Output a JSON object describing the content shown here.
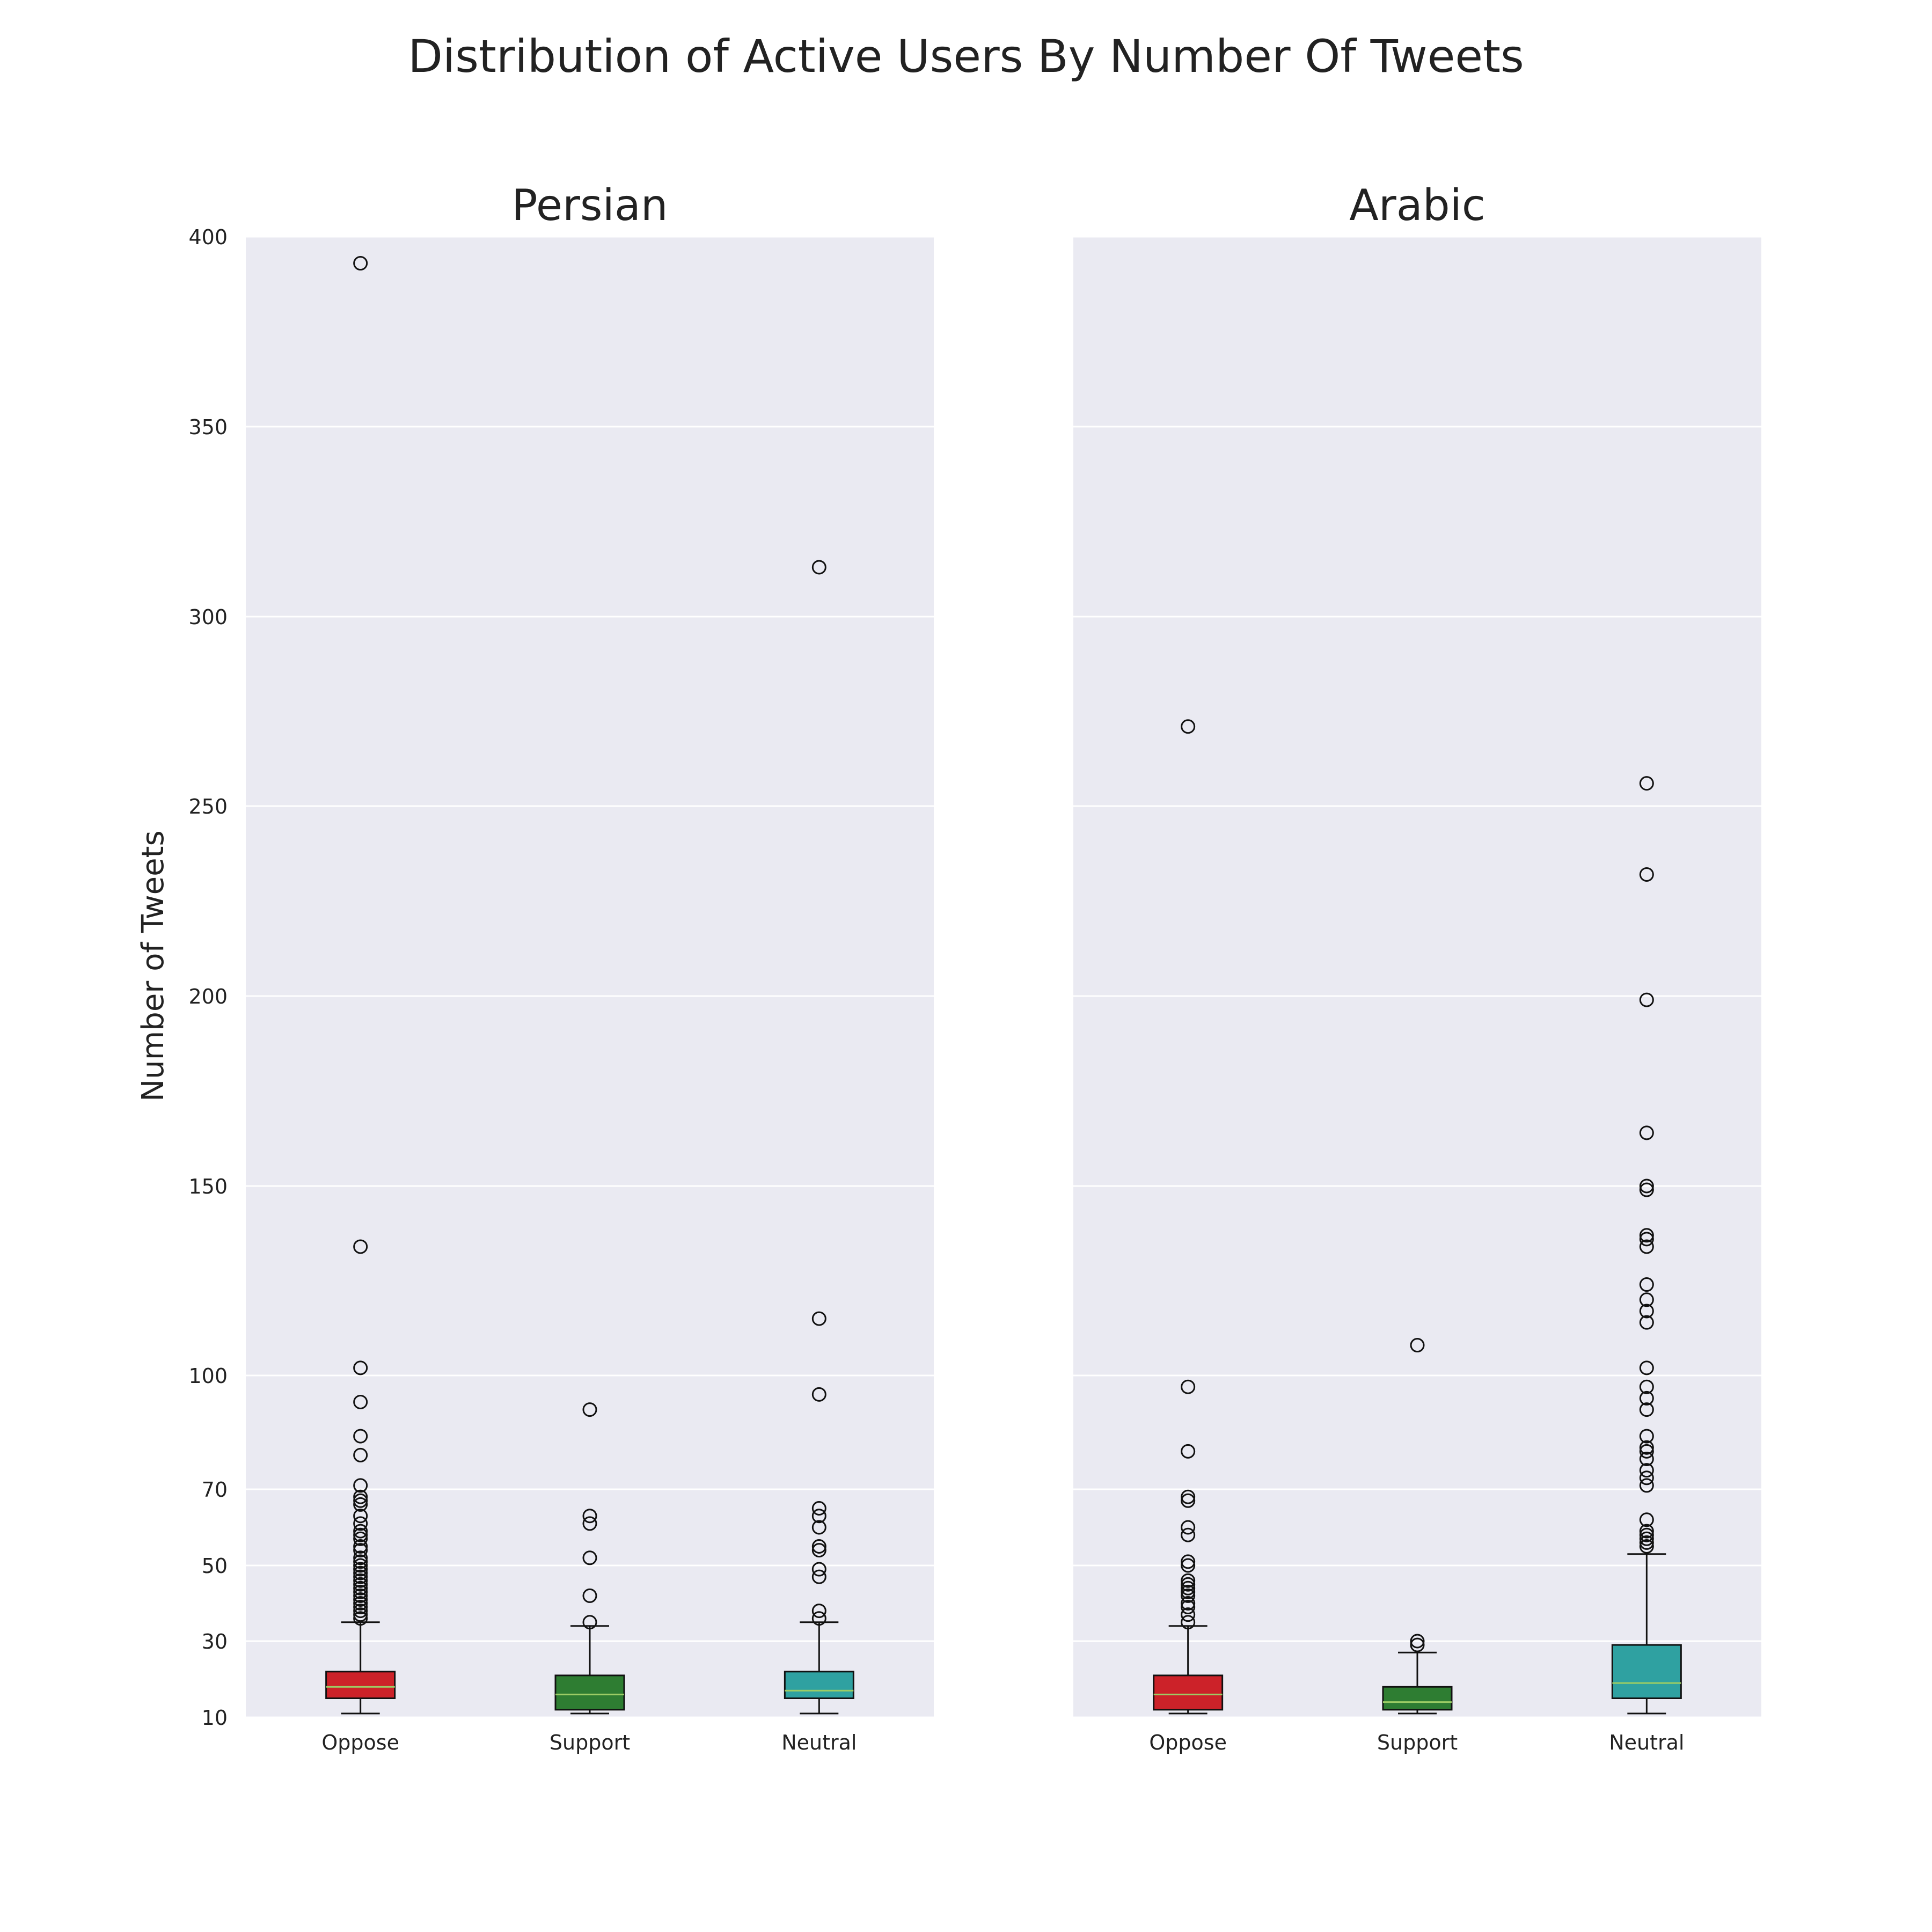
{
  "title": "Distribution of Active Users By Number Of Tweets",
  "chart_data": {
    "type": "box",
    "ylabel": "Number of Tweets",
    "ylim": [
      10,
      400
    ],
    "y_ticks": [
      10,
      30,
      50,
      70,
      100,
      150,
      200,
      250,
      300,
      350,
      400
    ],
    "grid": true,
    "colors": {
      "background": "#eaeaf2",
      "grid": "#ffffff",
      "Oppose": "#cc2229",
      "Support": "#2e7d32",
      "Neutral": "#2fa1a1",
      "median": "#9ccc65"
    },
    "panels": [
      {
        "title": "Persian",
        "categories": [
          "Oppose",
          "Support",
          "Neutral"
        ],
        "boxes": [
          {
            "name": "Oppose",
            "whisker_low": 11,
            "q1": 15,
            "median": 18,
            "q3": 22,
            "whisker_high": 35,
            "outliers": [
              393,
              134,
              102,
              93,
              84,
              79,
              71,
              68,
              67,
              66,
              63,
              61,
              59,
              58,
              57,
              55,
              54,
              52,
              51,
              50,
              49,
              48,
              47,
              46,
              45,
              44,
              43,
              42,
              41,
              40,
              39,
              38,
              37,
              36
            ]
          },
          {
            "name": "Support",
            "whisker_low": 11,
            "q1": 12,
            "median": 16,
            "q3": 21,
            "whisker_high": 34,
            "outliers": [
              91,
              63,
              61,
              52,
              42,
              35
            ]
          },
          {
            "name": "Neutral",
            "whisker_low": 11,
            "q1": 15,
            "median": 17,
            "q3": 22,
            "whisker_high": 35,
            "outliers": [
              313,
              115,
              95,
              65,
              63,
              60,
              55,
              54,
              49,
              47,
              38,
              36
            ]
          }
        ]
      },
      {
        "title": "Arabic",
        "categories": [
          "Oppose",
          "Support",
          "Neutral"
        ],
        "boxes": [
          {
            "name": "Oppose",
            "whisker_low": 11,
            "q1": 12,
            "median": 16,
            "q3": 21,
            "whisker_high": 34,
            "outliers": [
              271,
              97,
              80,
              68,
              67,
              60,
              58,
              51,
              50,
              46,
              45,
              44,
              43,
              42,
              40,
              39,
              37,
              35
            ]
          },
          {
            "name": "Support",
            "whisker_low": 11,
            "q1": 12,
            "median": 14,
            "q3": 18,
            "whisker_high": 27,
            "outliers": [
              108,
              30,
              29
            ]
          },
          {
            "name": "Neutral",
            "whisker_low": 11,
            "q1": 15,
            "median": 19,
            "q3": 29,
            "whisker_high": 53,
            "outliers": [
              256,
              232,
              199,
              164,
              150,
              149,
              137,
              136,
              134,
              124,
              120,
              117,
              114,
              102,
              97,
              94,
              91,
              84,
              81,
              80,
              78,
              75,
              73,
              71,
              62,
              59,
              58,
              57,
              56,
              55
            ]
          }
        ]
      }
    ]
  }
}
